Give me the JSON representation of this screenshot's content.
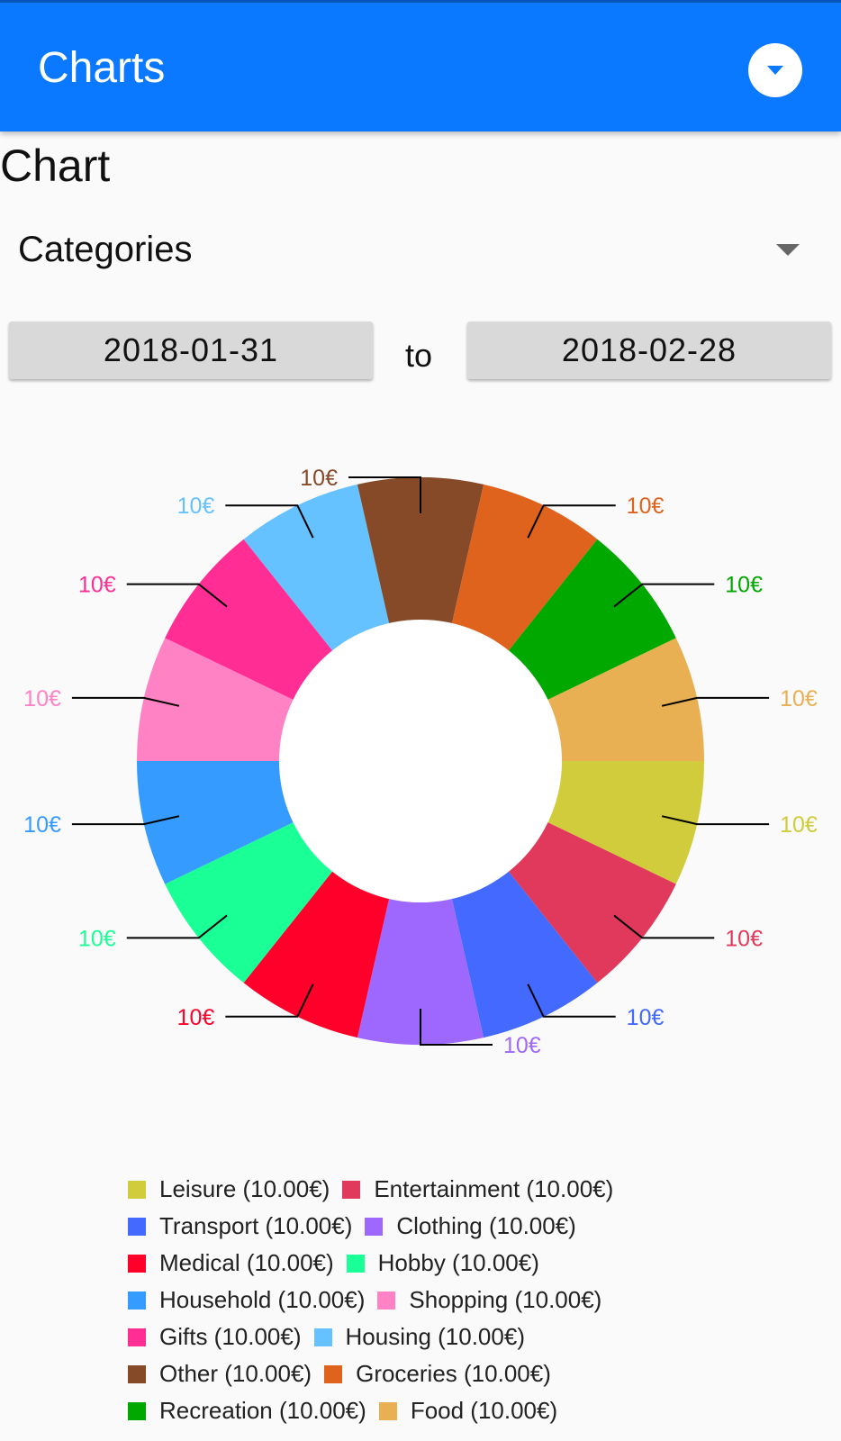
{
  "appbar": {
    "title": "Charts"
  },
  "section_title": "Chart",
  "chart_type_select": {
    "value": "Categories"
  },
  "date_range": {
    "from": "2018-01-31",
    "to_label": "to",
    "to": "2018-02-28"
  },
  "chart_data": {
    "type": "pie",
    "style": "donut",
    "slice_label": "10€",
    "slices": [
      {
        "name": "Leisure",
        "value": 10,
        "color": "#d0cc3c"
      },
      {
        "name": "Entertainment",
        "value": 10,
        "color": "#e0395b"
      },
      {
        "name": "Transport",
        "value": 10,
        "color": "#4369ff"
      },
      {
        "name": "Clothing",
        "value": 10,
        "color": "#9e67fe"
      },
      {
        "name": "Medical",
        "value": 10,
        "color": "#ff002a"
      },
      {
        "name": "Hobby",
        "value": 10,
        "color": "#1aff96"
      },
      {
        "name": "Household",
        "value": 10,
        "color": "#369bff"
      },
      {
        "name": "Shopping",
        "value": 10,
        "color": "#ff82c4"
      },
      {
        "name": "Gifts",
        "value": 10,
        "color": "#ff2d94"
      },
      {
        "name": "Housing",
        "value": 10,
        "color": "#66c1ff"
      },
      {
        "name": "Other",
        "value": 10,
        "color": "#864a28"
      },
      {
        "name": "Groceries",
        "value": 10,
        "color": "#e0631d"
      },
      {
        "name": "Recreation",
        "value": 10,
        "color": "#00a800"
      },
      {
        "name": "Food",
        "value": 10,
        "color": "#e8b052"
      }
    ]
  },
  "legend": {
    "items": [
      {
        "label": "Leisure (10.00€)",
        "color": "#d0cc3c"
      },
      {
        "label": "Entertainment (10.00€)",
        "color": "#e0395b"
      },
      {
        "label": "Transport (10.00€)",
        "color": "#4369ff"
      },
      {
        "label": "Clothing (10.00€)",
        "color": "#9e67fe"
      },
      {
        "label": "Medical (10.00€)",
        "color": "#ff002a"
      },
      {
        "label": "Hobby (10.00€)",
        "color": "#1aff96"
      },
      {
        "label": "Household (10.00€)",
        "color": "#369bff"
      },
      {
        "label": "Shopping (10.00€)",
        "color": "#ff82c4"
      },
      {
        "label": "Gifts (10.00€)",
        "color": "#ff2d94"
      },
      {
        "label": "Housing (10.00€)",
        "color": "#66c1ff"
      },
      {
        "label": "Other (10.00€)",
        "color": "#864a28"
      },
      {
        "label": "Groceries (10.00€)",
        "color": "#e0631d"
      },
      {
        "label": "Recreation (10.00€)",
        "color": "#00a800"
      },
      {
        "label": "Food (10.00€)",
        "color": "#e8b052"
      }
    ]
  }
}
